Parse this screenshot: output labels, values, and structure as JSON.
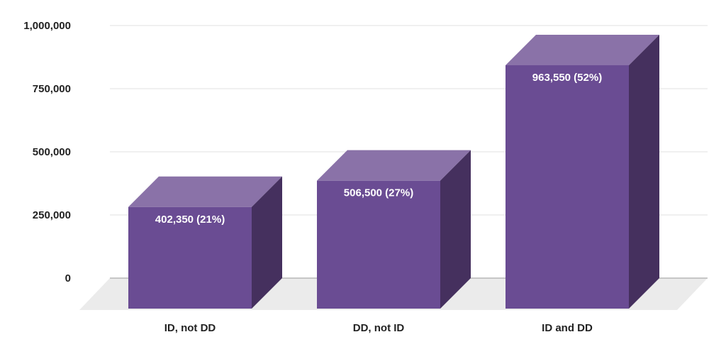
{
  "chart_data": {
    "type": "bar",
    "style": "3d",
    "categories": [
      "ID, not DD",
      "DD, not ID",
      "ID and DD"
    ],
    "values": [
      402350,
      506500,
      963550
    ],
    "data_labels": [
      "402,350 (21%)",
      "506,500 (27%)",
      "963,550 (52%)"
    ],
    "title": "",
    "xlabel": "",
    "ylabel": "",
    "ylim": [
      0,
      1000000
    ],
    "yticks": [
      0,
      250000,
      500000,
      750000,
      1000000
    ],
    "ytick_labels": [
      "0",
      "250,000",
      "500,000",
      "750,000",
      "1,000,000"
    ],
    "grid": true,
    "legend": "none",
    "colors": {
      "front": "#6a4c93",
      "top": "#8a72a8",
      "side": "#45305e",
      "floor": "#ebebeb",
      "gridline": "#e0e0e0",
      "baseline": "#999999"
    }
  }
}
